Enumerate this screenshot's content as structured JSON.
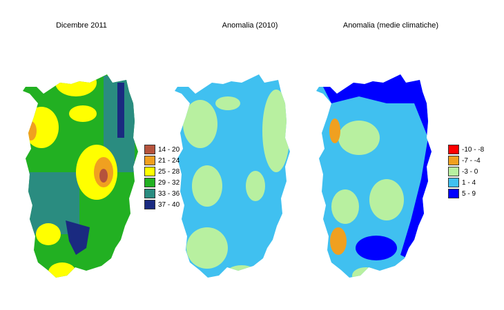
{
  "maps": [
    {
      "title": "Dicembre 2011"
    },
    {
      "title": "Anomalia (2010)"
    },
    {
      "title": "Anomalia (medie climatiche)"
    }
  ],
  "legend_values": {
    "items": [
      {
        "label": "14 - 20",
        "color": "#b5533c"
      },
      {
        "label": "21 - 24",
        "color": "#f0a020"
      },
      {
        "label": "25 - 28",
        "color": "#ffff00"
      },
      {
        "label": "29 - 32",
        "color": "#22b022"
      },
      {
        "label": "33 - 36",
        "color": "#2a8c80"
      },
      {
        "label": "37 - 40",
        "color": "#1a2a80"
      }
    ]
  },
  "legend_anomaly": {
    "items": [
      {
        "label": "-10 - -8",
        "color": "#ff0000"
      },
      {
        "label": "-7 - -4",
        "color": "#f0a020"
      },
      {
        "label": "-3 - 0",
        "color": "#b8f0a0"
      },
      {
        "label": "1 - 4",
        "color": "#40c0f0"
      },
      {
        "label": "5 - 9",
        "color": "#0000ff"
      }
    ]
  }
}
